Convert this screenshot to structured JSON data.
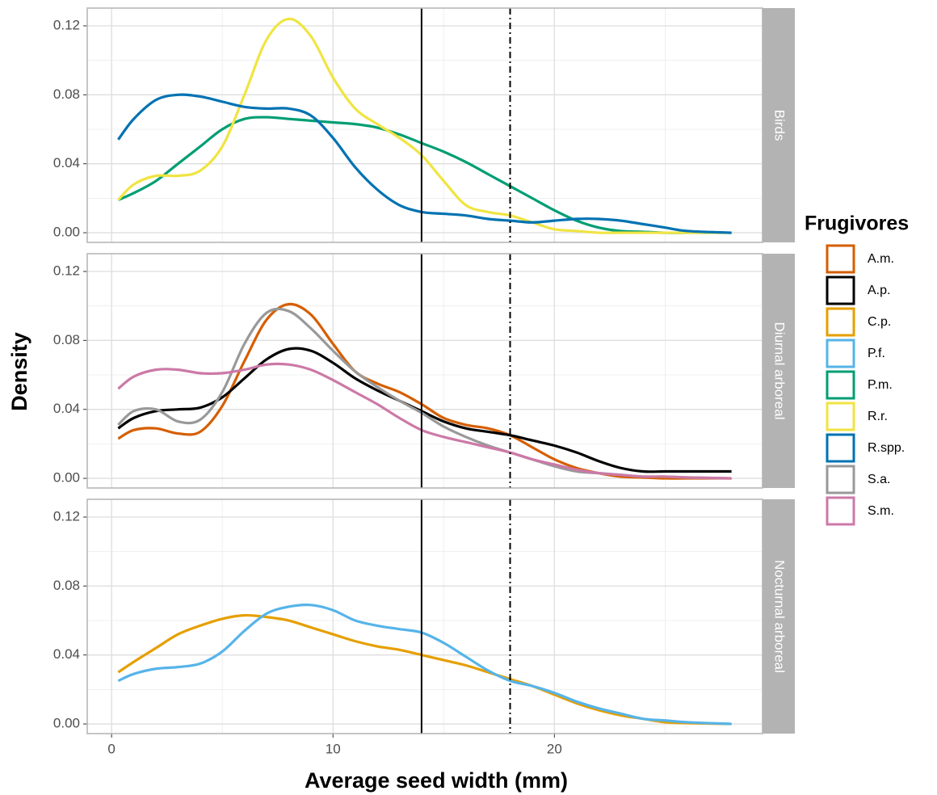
{
  "chart_data": {
    "type": "line",
    "x_label": "Average seed width (mm)",
    "y_label": "Density",
    "legend_title": "Frugivores",
    "xlim": [
      -1.1,
      29.4
    ],
    "xticks": [
      0,
      10,
      20
    ],
    "ylim": [
      -0.0056,
      0.1303
    ],
    "yticks": [
      {
        "value": 0,
        "label": "0.00"
      },
      0.04,
      0.08,
      0.12
    ],
    "grid": true,
    "vlines": [
      {
        "value": 14,
        "style": "solid"
      },
      {
        "value": 18,
        "style": "dashdot"
      }
    ],
    "x": [
      0.3,
      1,
      2,
      3,
      4,
      5,
      6,
      7,
      8,
      9,
      10,
      11,
      12,
      13,
      14,
      15,
      16,
      17,
      18,
      19,
      20,
      21,
      22,
      23,
      24,
      25,
      26,
      28
    ],
    "facets": [
      {
        "title": "Birds",
        "series": [
          {
            "name": "P.m.",
            "color": "#009E73",
            "values": [
              0.019,
              0.023,
              0.03,
              0.04,
              0.05,
              0.06,
              0.066,
              0.067,
              0.066,
              0.065,
              0.064,
              0.063,
              0.061,
              0.057,
              0.052,
              0.047,
              0.041,
              0.034,
              0.027,
              0.02,
              0.013,
              0.007,
              0.003,
              0.001,
              0.0005,
              0,
              0,
              0
            ]
          },
          {
            "name": "R.r.",
            "color": "#F0E442",
            "values": [
              0.019,
              0.028,
              0.033,
              0.033,
              0.036,
              0.05,
              0.08,
              0.112,
              0.124,
              0.114,
              0.09,
              0.072,
              0.063,
              0.055,
              0.045,
              0.03,
              0.016,
              0.012,
              0.01,
              0.006,
              0.002,
              0.001,
              0,
              0,
              0,
              0,
              0,
              0
            ]
          },
          {
            "name": "R.spp.",
            "color": "#0072B2",
            "values": [
              0.054,
              0.066,
              0.077,
              0.08,
              0.079,
              0.076,
              0.073,
              0.072,
              0.072,
              0.068,
              0.055,
              0.038,
              0.025,
              0.016,
              0.012,
              0.011,
              0.01,
              0.008,
              0.007,
              0.006,
              0.007,
              0.008,
              0.008,
              0.007,
              0.005,
              0.003,
              0.001,
              0
            ]
          }
        ]
      },
      {
        "title": "Diurnal arboreal",
        "series": [
          {
            "name": "A.m.",
            "color": "#D55E00",
            "values": [
              0.023,
              0.028,
              0.029,
              0.026,
              0.027,
              0.042,
              0.068,
              0.092,
              0.101,
              0.095,
              0.078,
              0.062,
              0.055,
              0.05,
              0.043,
              0.035,
              0.031,
              0.029,
              0.025,
              0.018,
              0.011,
              0.006,
              0.003,
              0.001,
              0.0005,
              0,
              0,
              0
            ]
          },
          {
            "name": "A.p.",
            "color": "#000000",
            "values": [
              0.029,
              0.035,
              0.039,
              0.04,
              0.041,
              0.047,
              0.058,
              0.069,
              0.075,
              0.074,
              0.067,
              0.058,
              0.051,
              0.045,
              0.039,
              0.033,
              0.029,
              0.027,
              0.025,
              0.022,
              0.019,
              0.015,
              0.01,
              0.006,
              0.004,
              0.004,
              0.004,
              0.004
            ]
          },
          {
            "name": "S.a.",
            "color": "#999999",
            "values": [
              0.031,
              0.039,
              0.04,
              0.033,
              0.034,
              0.05,
              0.078,
              0.096,
              0.097,
              0.087,
              0.074,
              0.062,
              0.053,
              0.045,
              0.038,
              0.03,
              0.024,
              0.019,
              0.015,
              0.011,
              0.007,
              0.004,
              0.003,
              0.002,
              0.001,
              0.001,
              0.0005,
              0
            ]
          },
          {
            "name": "S.m.",
            "color": "#CC79A7",
            "values": [
              0.052,
              0.059,
              0.063,
              0.063,
              0.061,
              0.061,
              0.063,
              0.066,
              0.066,
              0.063,
              0.057,
              0.05,
              0.043,
              0.035,
              0.028,
              0.024,
              0.021,
              0.018,
              0.015,
              0.011,
              0.008,
              0.005,
              0.003,
              0.002,
              0.001,
              0.001,
              0.0005,
              0
            ]
          }
        ]
      },
      {
        "title": "Nocturnal arboreal",
        "series": [
          {
            "name": "C.p.",
            "color": "#E69F00",
            "values": [
              0.03,
              0.036,
              0.044,
              0.052,
              0.057,
              0.061,
              0.063,
              0.062,
              0.06,
              0.056,
              0.052,
              0.048,
              0.045,
              0.043,
              0.04,
              0.037,
              0.034,
              0.03,
              0.026,
              0.022,
              0.017,
              0.012,
              0.008,
              0.005,
              0.003,
              0.001,
              0.0005,
              0
            ]
          },
          {
            "name": "P.f.",
            "color": "#56B4E9",
            "values": [
              0.025,
              0.029,
              0.032,
              0.033,
              0.035,
              0.042,
              0.054,
              0.064,
              0.068,
              0.069,
              0.066,
              0.06,
              0.057,
              0.055,
              0.053,
              0.047,
              0.039,
              0.031,
              0.025,
              0.022,
              0.018,
              0.013,
              0.009,
              0.006,
              0.003,
              0.002,
              0.001,
              0
            ]
          }
        ]
      }
    ]
  }
}
